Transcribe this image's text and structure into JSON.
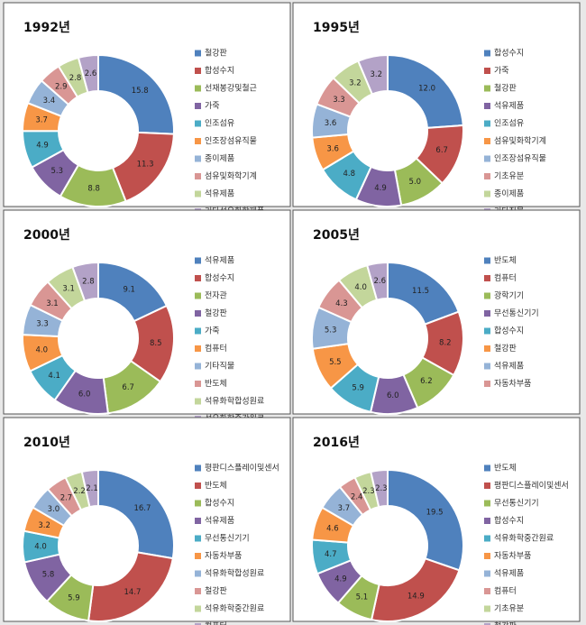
{
  "chart_data": [
    {
      "type": "pie",
      "title": "1992년",
      "categories": [
        "철강판",
        "합성수지",
        "선재봉강및철근",
        "가죽",
        "인조섬유",
        "인조장섬유직물",
        "종이제품",
        "섬유및화학기계",
        "석유제품",
        "기타석유화학제품"
      ],
      "values": [
        15.8,
        11.3,
        8.8,
        5.3,
        4.9,
        3.7,
        3.4,
        2.9,
        2.8,
        2.6
      ],
      "value_labels": [
        "15.8",
        "11.3",
        "8.8",
        "5.3",
        "4.9",
        "3.7",
        "3.4",
        "2.9",
        "2.8",
        "2.6"
      ],
      "colors": [
        "#4f81bd",
        "#c0504d",
        "#9bbb59",
        "#8064a2",
        "#4bacc6",
        "#f79646",
        "#95b3d7",
        "#d99694",
        "#c3d69b",
        "#b3a2c7"
      ]
    },
    {
      "type": "pie",
      "title": "1995년",
      "categories": [
        "합성수지",
        "가죽",
        "철강판",
        "석유제품",
        "인조섬유",
        "섬유및화학기계",
        "인조장섬유직물",
        "기초유분",
        "종이제품",
        "기타직물"
      ],
      "values": [
        12.0,
        6.7,
        5.0,
        4.9,
        4.8,
        3.6,
        3.6,
        3.3,
        3.2,
        3.2
      ],
      "value_labels": [
        "12.0",
        "6.7",
        "5.0",
        "4.9",
        "4.8",
        "3.6",
        "3.6",
        "3.3",
        "3.2",
        "3.2"
      ],
      "colors": [
        "#4f81bd",
        "#c0504d",
        "#9bbb59",
        "#8064a2",
        "#4bacc6",
        "#f79646",
        "#95b3d7",
        "#d99694",
        "#c3d69b",
        "#b3a2c7"
      ]
    },
    {
      "type": "pie",
      "title": "2000년",
      "categories": [
        "석유제품",
        "합성수지",
        "전자관",
        "철강판",
        "가죽",
        "컴퓨터",
        "기타직물",
        "반도체",
        "석유화학합성원료",
        "석유화학중간원료"
      ],
      "values": [
        9.1,
        8.5,
        6.7,
        6.0,
        4.1,
        4.0,
        3.3,
        3.1,
        3.1,
        2.8
      ],
      "value_labels": [
        "9.1",
        "8.5",
        "6.7",
        "6.0",
        "4.1",
        "4.0",
        "3.3",
        "3.1",
        "3.1",
        "2.8"
      ],
      "colors": [
        "#4f81bd",
        "#c0504d",
        "#9bbb59",
        "#8064a2",
        "#4bacc6",
        "#f79646",
        "#95b3d7",
        "#d99694",
        "#c3d69b",
        "#b3a2c7"
      ]
    },
    {
      "type": "pie",
      "title": "2005년",
      "categories": [
        "반도체",
        "컴퓨터",
        "광학기기",
        "무선통신기기",
        "합성수지",
        "철강판",
        "석유제품",
        "자동차부품",
        null,
        null
      ],
      "values": [
        11.5,
        8.2,
        6.2,
        6.0,
        5.9,
        5.5,
        5.3,
        4.3,
        4.0,
        2.6
      ],
      "value_labels": [
        "11.5",
        "8.2",
        "6.2",
        "6.0",
        "5.9",
        "5.5",
        "5.3",
        "4.3",
        "4.0",
        "2.6"
      ],
      "colors": [
        "#4f81bd",
        "#c0504d",
        "#9bbb59",
        "#8064a2",
        "#4bacc6",
        "#f79646",
        "#95b3d7",
        "#d99694",
        "#c3d69b",
        "#b3a2c7"
      ]
    },
    {
      "type": "pie",
      "title": "2010년",
      "categories": [
        "평판디스플레이및센서",
        "반도체",
        "합성수지",
        "석유제품",
        "무선통신기기",
        "자동차부품",
        "석유화학합성원료",
        "철강판",
        "석유화학중간원료",
        "컴퓨터"
      ],
      "values": [
        16.7,
        14.7,
        5.9,
        5.8,
        4.0,
        3.2,
        3.0,
        2.7,
        2.2,
        2.1
      ],
      "value_labels": [
        "16.7",
        "14.7",
        "5.9",
        "5.8",
        "4.0",
        "3.2",
        "3.0",
        "2.7",
        "2.2",
        "2.1"
      ],
      "colors": [
        "#4f81bd",
        "#c0504d",
        "#9bbb59",
        "#8064a2",
        "#4bacc6",
        "#f79646",
        "#95b3d7",
        "#d99694",
        "#c3d69b",
        "#b3a2c7"
      ]
    },
    {
      "type": "pie",
      "title": "2016년",
      "categories": [
        "반도체",
        "평판디스플레이및센서",
        "무선통신기기",
        "합성수지",
        "석유화학중간원료",
        "자동차부품",
        "석유제품",
        "컴퓨터",
        "기초유분",
        "철강판"
      ],
      "values": [
        19.5,
        14.9,
        5.1,
        4.9,
        4.7,
        4.6,
        3.7,
        2.4,
        2.3,
        2.3
      ],
      "value_labels": [
        "19.5",
        "14.9",
        "5.1",
        "4.9",
        "4.7",
        "4.6",
        "3.7",
        "2.4",
        "2.3",
        "2.3"
      ],
      "colors": [
        "#4f81bd",
        "#c0504d",
        "#9bbb59",
        "#8064a2",
        "#4bacc6",
        "#f79646",
        "#95b3d7",
        "#d99694",
        "#c3d69b",
        "#b3a2c7"
      ]
    }
  ]
}
